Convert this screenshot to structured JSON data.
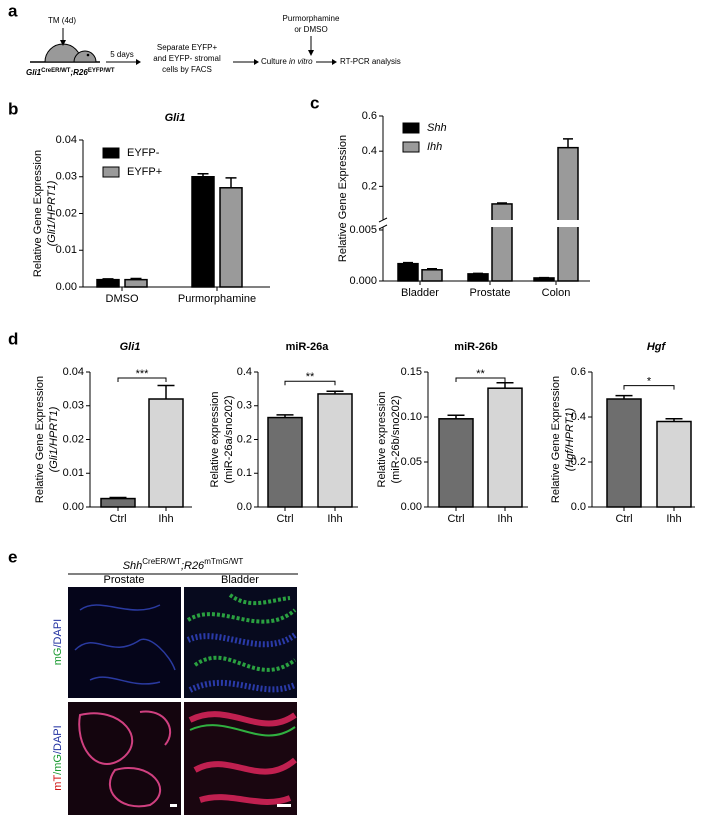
{
  "panels": {
    "labels": [
      "a",
      "b",
      "c",
      "d",
      "e"
    ],
    "schematic": {
      "tm": "TM (4d)",
      "days": "5 days",
      "genotype": [
        "Gli1",
        "CreER/WT",
        ";R26",
        "EYFP/WT"
      ],
      "separate": [
        "Separate EYFP+",
        "and EYFP- stromal",
        "cells by FACS"
      ],
      "culture": [
        "Culture ",
        "in vitro"
      ],
      "treatment": [
        "Purmorphamine",
        "or DMSO"
      ],
      "analysis": "RT-PCR analysis"
    },
    "imaging": {
      "genotype": [
        "Shh",
        "CreER/WT",
        ";R26",
        "mTmG/WT"
      ],
      "columns": [
        "Prostate",
        "Bladder"
      ],
      "rows": [
        [
          "mG",
          "/DAPI"
        ],
        [
          "mT",
          "/mG",
          "/DAPI"
        ]
      ]
    }
  },
  "chart_data": [
    {
      "type": "bar",
      "title": "Gli1",
      "italic": true,
      "ylabel": [
        "Relative Gene Expression",
        "(Gli1/HPRT1)"
      ],
      "categories": [
        "DMSO",
        "Purmorphamine"
      ],
      "series": [
        {
          "name": "EYFP-",
          "color": "#000000",
          "values": [
            0.002,
            0.03
          ],
          "errors": [
            0.0002,
            0.0008
          ]
        },
        {
          "name": "EYFP+",
          "color": "#9a9a9a",
          "values": [
            0.002,
            0.027
          ],
          "errors": [
            0.0003,
            0.0027
          ]
        }
      ],
      "ylim": [
        0,
        0.04
      ],
      "yticks": [
        {
          "value": 0,
          "label": "0.00"
        },
        0.01,
        0.02,
        0.03,
        0.04
      ]
    },
    {
      "type": "broken-bar",
      "ylabel": [
        "Relative Gene Expression"
      ],
      "legend_italic": true,
      "categories": [
        "Bladder",
        "Prostate",
        "Colon"
      ],
      "series": [
        {
          "name": "Shh",
          "color": "#000000",
          "values": [
            0.0017,
            0.0007,
            0.0003
          ],
          "errors": [
            0.0001,
            5e-05,
            3e-05
          ]
        },
        {
          "name": "Ihh",
          "color": "#9a9a9a",
          "values": [
            0.0011,
            0.1,
            0.42
          ],
          "errors": [
            0.0001,
            0.005,
            0.05
          ]
        }
      ],
      "ylim_segments": [
        [
          0,
          0.005
        ],
        [
          0.02,
          0.6
        ]
      ],
      "yticks": [
        {
          "value": 0,
          "label": "0.000"
        },
        0.005,
        0.2,
        0.4,
        0.6
      ]
    },
    {
      "type": "bar",
      "title": "Gli1",
      "italic": true,
      "ylabel": [
        "Relative Gene Expression",
        "(Gli1/HPRT1)"
      ],
      "categories": [
        "Ctrl",
        "Ihh"
      ],
      "values": [
        0.0025,
        0.032
      ],
      "errors": [
        0.0003,
        0.004
      ],
      "colors": [
        "#6e6e6e",
        "#d6d6d6"
      ],
      "significance": "***",
      "ylim": [
        0,
        0.04
      ],
      "yticks": [
        {
          "value": 0,
          "label": "0.00"
        },
        0.01,
        0.02,
        0.03,
        0.04
      ]
    },
    {
      "type": "bar",
      "title": "miR-26a",
      "italic": false,
      "ylabel": [
        "Relative expression",
        "(miR-26a/sno202)"
      ],
      "categories": [
        "Ctrl",
        "Ihh"
      ],
      "values": [
        0.265,
        0.335
      ],
      "errors": [
        0.008,
        0.008
      ],
      "colors": [
        "#6e6e6e",
        "#d6d6d6"
      ],
      "significance": "**",
      "ylim": [
        0,
        0.4
      ],
      "yticks": [
        {
          "value": 0,
          "label": "0.0"
        },
        0.1,
        0.2,
        0.3,
        0.4
      ]
    },
    {
      "type": "bar",
      "title": "miR-26b",
      "italic": false,
      "ylabel": [
        "Relative expression",
        "(miR-26b/sno202)"
      ],
      "categories": [
        "Ctrl",
        "Ihh"
      ],
      "values": [
        0.098,
        0.132
      ],
      "errors": [
        0.004,
        0.006
      ],
      "colors": [
        "#6e6e6e",
        "#d6d6d6"
      ],
      "significance": "**",
      "ylim": [
        0,
        0.15
      ],
      "yticks": [
        {
          "value": 0,
          "label": "0.00"
        },
        0.05,
        {
          "value": 0.1,
          "label": "0.10"
        },
        0.15
      ]
    },
    {
      "type": "bar",
      "title": "Hgf",
      "italic": true,
      "ylabel": [
        "Relative Gene Expression",
        "(Hgf/HPRT1)"
      ],
      "categories": [
        "Ctrl",
        "Ihh"
      ],
      "values": [
        0.48,
        0.38
      ],
      "errors": [
        0.015,
        0.012
      ],
      "colors": [
        "#6e6e6e",
        "#d6d6d6"
      ],
      "significance": "*",
      "ylim": [
        0,
        0.6
      ],
      "yticks": [
        {
          "value": 0,
          "label": "0.0"
        },
        0.2,
        0.4,
        0.6
      ]
    }
  ]
}
